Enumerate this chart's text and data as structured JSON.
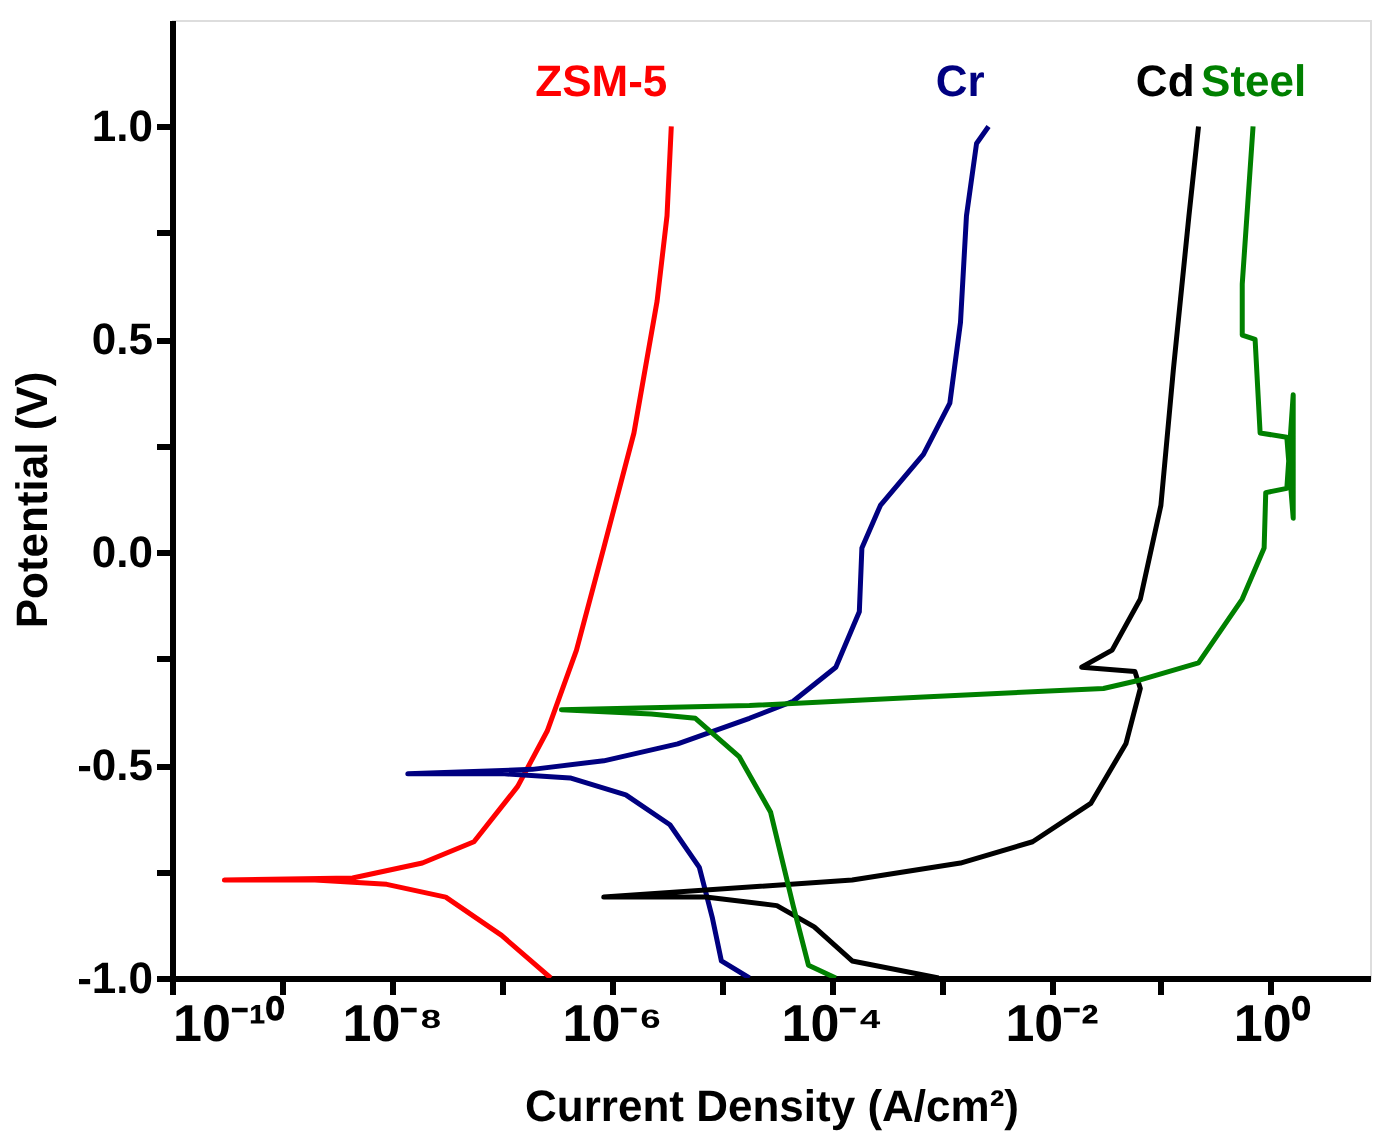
{
  "chart_data": {
    "type": "line",
    "xlabel": "Current Density (A/cm²)",
    "ylabel": "Potential (V)",
    "log": "x",
    "xlim": [
      1e-10,
      8
    ],
    "ylim": [
      -1,
      1.25
    ],
    "xticks": [
      {
        "value": 1e-10,
        "label": "10⁻¹⁰"
      },
      {
        "value": 1e-09,
        "label": null
      },
      {
        "value": 1e-08,
        "label": "10⁻⁸"
      },
      {
        "value": 1e-07,
        "label": null
      },
      {
        "value": 1e-06,
        "label": "10⁻⁶"
      },
      {
        "value": 1e-05,
        "label": null
      },
      {
        "value": 0.0001,
        "label": "10⁻⁴"
      },
      {
        "value": 0.001,
        "label": null
      },
      {
        "value": 0.01,
        "label": "10⁻²"
      },
      {
        "value": 0.1,
        "label": null
      },
      {
        "value": 1,
        "label": "10⁰"
      }
    ],
    "yticks": [
      {
        "value": -1,
        "label": "-1.0"
      },
      {
        "value": -0.75,
        "label": null
      },
      {
        "value": -0.5,
        "label": "-0.5"
      },
      {
        "value": -0.25,
        "label": null
      },
      {
        "value": 0,
        "label": "0.0"
      },
      {
        "value": 0.25,
        "label": null
      },
      {
        "value": 0.5,
        "label": "0.5"
      },
      {
        "value": 0.75,
        "label": null
      },
      {
        "value": 1,
        "label": "1.0"
      }
    ],
    "grid": false,
    "legend": false,
    "marker": "none",
    "line_style": "solid",
    "series": [
      {
        "name": "ZSM-5",
        "color": "#ff0000",
        "x": [
          2.8e-07,
          1e-07,
          3.1e-08,
          9e-09,
          2e-09,
          3e-10,
          4.4e-09,
          1.9e-08,
          5.6e-08,
          1.4e-07,
          2.6e-07,
          4.8e-07,
          8.5e-07,
          1.6e-06,
          2.6e-06,
          3.2e-06,
          3.5e-06
        ],
        "values": [
          -1.0,
          -0.9,
          -0.81,
          -0.78,
          -0.77,
          -0.77,
          -0.765,
          -0.73,
          -0.68,
          -0.55,
          -0.42,
          -0.23,
          0.01,
          0.28,
          0.59,
          0.79,
          1.0
        ]
      },
      {
        "name": "Cr",
        "color": "#000080",
        "x": [
          1.8e-05,
          1e-05,
          8.3e-06,
          6.3e-06,
          3.4e-06,
          1.35e-06,
          4.2e-07,
          1e-07,
          1.4e-08,
          1.9e-07,
          8.5e-07,
          4e-06,
          1.8e-05,
          4.5e-05,
          0.00011,
          0.00018,
          0.00019,
          0.00028,
          0.00069,
          0.0012,
          0.0015,
          0.0017,
          0.0021,
          0.0027
        ],
        "values": [
          -1.0,
          -0.96,
          -0.86,
          -0.74,
          -0.64,
          -0.57,
          -0.53,
          -0.52,
          -0.52,
          -0.51,
          -0.49,
          -0.45,
          -0.39,
          -0.35,
          -0.27,
          -0.14,
          0.01,
          0.11,
          0.23,
          0.35,
          0.54,
          0.79,
          0.96,
          1.0
        ]
      },
      {
        "name": "Cd",
        "color": "#000000",
        "x": [
          0.00095,
          0.000155,
          7e-05,
          3.2e-05,
          7.2e-06,
          8.5e-07,
          0.000155,
          0.0015,
          0.0068,
          0.023,
          0.048,
          0.065,
          0.058,
          0.019,
          0.036,
          0.065,
          0.1,
          0.13,
          0.18,
          0.22
        ],
        "values": [
          -1.0,
          -0.96,
          -0.88,
          -0.83,
          -0.81,
          -0.81,
          -0.77,
          -0.73,
          -0.68,
          -0.59,
          -0.45,
          -0.32,
          -0.28,
          -0.27,
          -0.23,
          -0.11,
          0.11,
          0.43,
          0.79,
          1.0
        ]
      },
      {
        "name": "Steel",
        "color": "#008000",
        "x": [
          0.00011,
          6.2e-05,
          4.5e-05,
          2.8e-05,
          1.45e-05,
          5.8e-06,
          2.3e-06,
          3.5e-07,
          1.8e-05,
          0.00069,
          0.03,
          0.065,
          0.22,
          0.55,
          0.87,
          0.9,
          1.4,
          1.6,
          1.6,
          1.4,
          0.8,
          0.72,
          0.55,
          0.55,
          0.69
        ],
        "values": [
          -1.0,
          -0.97,
          -0.83,
          -0.61,
          -0.48,
          -0.39,
          -0.38,
          -0.37,
          -0.36,
          -0.34,
          -0.32,
          -0.3,
          -0.26,
          -0.11,
          0.01,
          0.14,
          0.15,
          0.37,
          0.08,
          0.27,
          0.28,
          0.5,
          0.51,
          0.63,
          1.0
        ]
      }
    ]
  }
}
